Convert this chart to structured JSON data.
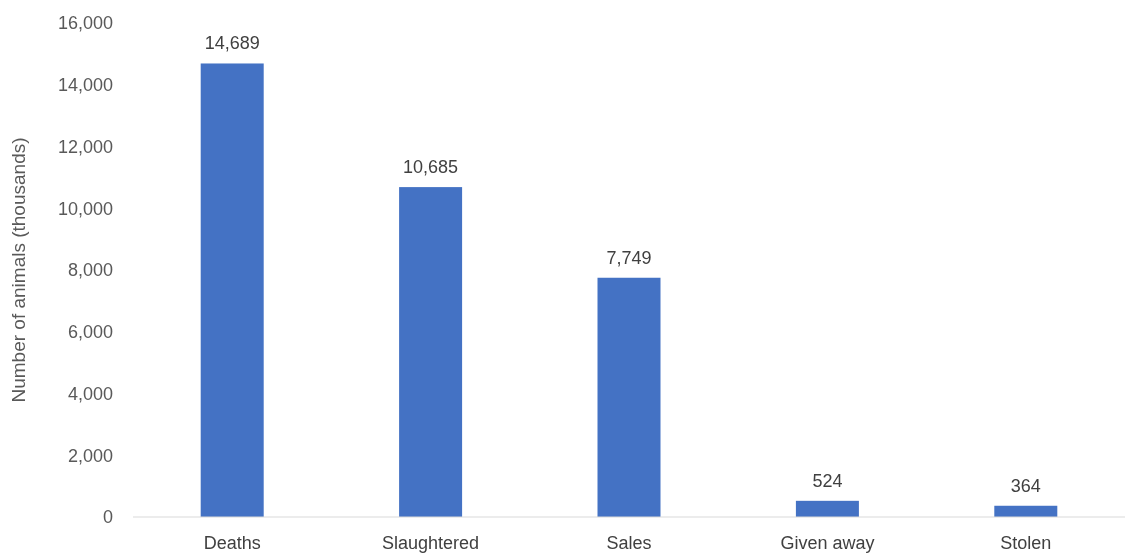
{
  "chart_data": {
    "type": "bar",
    "ylabel": "Number of animals (thousands)",
    "categories": [
      "Deaths",
      "Slaughtered",
      "Sales",
      "Given away",
      "Stolen"
    ],
    "values": [
      14689,
      10685,
      7749,
      524,
      364
    ],
    "color": "#4472c4",
    "ylim": [
      0,
      16000
    ],
    "yticks": [
      {
        "value": 0,
        "label": "0"
      },
      {
        "value": 2000,
        "label": "2,000"
      },
      {
        "value": 4000,
        "label": "4,000"
      },
      {
        "value": 6000,
        "label": "6,000"
      },
      {
        "value": 8000,
        "label": "8,000"
      },
      {
        "value": 10000,
        "label": "10,000"
      },
      {
        "value": 12000,
        "label": "12,000"
      },
      {
        "value": 14000,
        "label": "14,000"
      },
      {
        "value": 16000,
        "label": "16,000"
      }
    ],
    "value_labels": [
      "14,689",
      "10,685",
      "7,749",
      "524",
      "364"
    ],
    "grid": false
  }
}
